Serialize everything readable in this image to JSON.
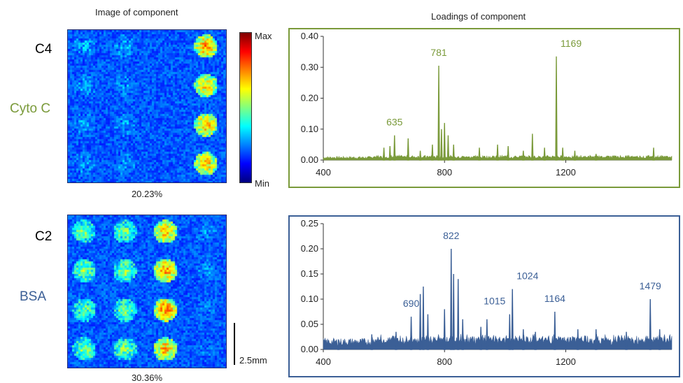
{
  "headers": {
    "image": "Image of component",
    "loadings": "Loadings of component"
  },
  "colorbar": {
    "max": "Max",
    "min": "Min"
  },
  "scale_bar": {
    "label": "2.5mm"
  },
  "panels": [
    {
      "component": "C4",
      "protein": "Cyto C",
      "percent": "20.23%",
      "color": "#7a9a3a",
      "spots": [
        {
          "row": 0,
          "col": 0,
          "i": 0.3
        },
        {
          "row": 0,
          "col": 1,
          "i": 0.28
        },
        {
          "row": 0,
          "col": 3,
          "i": 0.75
        },
        {
          "row": 1,
          "col": 0,
          "i": 0.28
        },
        {
          "row": 1,
          "col": 1,
          "i": 0.26
        },
        {
          "row": 1,
          "col": 3,
          "i": 0.7
        },
        {
          "row": 2,
          "col": 0,
          "i": 0.27
        },
        {
          "row": 2,
          "col": 1,
          "i": 0.27
        },
        {
          "row": 2,
          "col": 3,
          "i": 0.72
        },
        {
          "row": 3,
          "col": 0,
          "i": 0.28
        },
        {
          "row": 3,
          "col": 1,
          "i": 0.27
        },
        {
          "row": 3,
          "col": 3,
          "i": 0.7
        }
      ]
    },
    {
      "component": "C2",
      "protein": "BSA",
      "percent": "30.36%",
      "color": "#3b5f96",
      "spots": [
        {
          "row": 0,
          "col": 0,
          "i": 0.5
        },
        {
          "row": 0,
          "col": 1,
          "i": 0.5
        },
        {
          "row": 0,
          "col": 2,
          "i": 0.7
        },
        {
          "row": 0,
          "col": 3,
          "i": 0.25
        },
        {
          "row": 1,
          "col": 0,
          "i": 0.52
        },
        {
          "row": 1,
          "col": 1,
          "i": 0.52
        },
        {
          "row": 1,
          "col": 2,
          "i": 0.75
        },
        {
          "row": 1,
          "col": 3,
          "i": 0.25
        },
        {
          "row": 2,
          "col": 0,
          "i": 0.5
        },
        {
          "row": 2,
          "col": 1,
          "i": 0.5
        },
        {
          "row": 2,
          "col": 2,
          "i": 0.78
        },
        {
          "row": 2,
          "col": 3,
          "i": 0.22
        },
        {
          "row": 3,
          "col": 0,
          "i": 0.52
        },
        {
          "row": 3,
          "col": 1,
          "i": 0.52
        },
        {
          "row": 3,
          "col": 2,
          "i": 0.72
        },
        {
          "row": 3,
          "col": 3,
          "i": 0.22
        }
      ]
    }
  ],
  "chart_data": [
    {
      "type": "area",
      "title": "",
      "xlabel": "",
      "ylabel": "",
      "xlim": [
        400,
        1550
      ],
      "ylim": [
        0,
        0.4
      ],
      "xticks": [
        400,
        800,
        1200
      ],
      "yticks": [
        0.0,
        0.1,
        0.2,
        0.3,
        0.4
      ],
      "ytick_labels": [
        "0.00",
        "0.10",
        "0.20",
        "0.30",
        "0.40"
      ],
      "baseline": 0.008,
      "peaks": [
        {
          "x": 600,
          "y": 0.04
        },
        {
          "x": 620,
          "y": 0.045
        },
        {
          "x": 635,
          "y": 0.08
        },
        {
          "x": 680,
          "y": 0.07
        },
        {
          "x": 720,
          "y": 0.03
        },
        {
          "x": 760,
          "y": 0.05
        },
        {
          "x": 781,
          "y": 0.305
        },
        {
          "x": 790,
          "y": 0.1
        },
        {
          "x": 800,
          "y": 0.12
        },
        {
          "x": 812,
          "y": 0.08
        },
        {
          "x": 830,
          "y": 0.05
        },
        {
          "x": 915,
          "y": 0.04
        },
        {
          "x": 975,
          "y": 0.05
        },
        {
          "x": 1010,
          "y": 0.045
        },
        {
          "x": 1060,
          "y": 0.03
        },
        {
          "x": 1090,
          "y": 0.085
        },
        {
          "x": 1130,
          "y": 0.04
        },
        {
          "x": 1169,
          "y": 0.335
        },
        {
          "x": 1190,
          "y": 0.04
        },
        {
          "x": 1230,
          "y": 0.03
        },
        {
          "x": 1300,
          "y": 0.02
        },
        {
          "x": 1490,
          "y": 0.04
        }
      ],
      "annotations": [
        {
          "x": 635,
          "y": 0.08,
          "label": "635"
        },
        {
          "x": 781,
          "y": 0.305,
          "label": "781"
        },
        {
          "x": 1169,
          "y": 0.335,
          "label": "1169"
        }
      ]
    },
    {
      "type": "area",
      "title": "",
      "xlabel": "",
      "ylabel": "",
      "xlim": [
        400,
        1550
      ],
      "ylim": [
        0,
        0.25
      ],
      "xticks": [
        400,
        800,
        1200
      ],
      "yticks": [
        0.0,
        0.05,
        0.1,
        0.15,
        0.2,
        0.25
      ],
      "ytick_labels": [
        "0.00",
        "0.05",
        "0.10",
        "0.15",
        "0.20",
        "0.25"
      ],
      "baseline": 0.015,
      "peaks": [
        {
          "x": 450,
          "y": 0.02
        },
        {
          "x": 560,
          "y": 0.03
        },
        {
          "x": 640,
          "y": 0.035
        },
        {
          "x": 690,
          "y": 0.065
        },
        {
          "x": 720,
          "y": 0.11
        },
        {
          "x": 730,
          "y": 0.125
        },
        {
          "x": 745,
          "y": 0.07
        },
        {
          "x": 800,
          "y": 0.08
        },
        {
          "x": 822,
          "y": 0.2
        },
        {
          "x": 830,
          "y": 0.15
        },
        {
          "x": 845,
          "y": 0.14
        },
        {
          "x": 860,
          "y": 0.06
        },
        {
          "x": 920,
          "y": 0.045
        },
        {
          "x": 940,
          "y": 0.06
        },
        {
          "x": 1015,
          "y": 0.07
        },
        {
          "x": 1024,
          "y": 0.12
        },
        {
          "x": 1060,
          "y": 0.04
        },
        {
          "x": 1100,
          "y": 0.035
        },
        {
          "x": 1164,
          "y": 0.075
        },
        {
          "x": 1240,
          "y": 0.04
        },
        {
          "x": 1300,
          "y": 0.04
        },
        {
          "x": 1400,
          "y": 0.035
        },
        {
          "x": 1479,
          "y": 0.1
        },
        {
          "x": 1510,
          "y": 0.04
        }
      ],
      "annotations": [
        {
          "x": 690,
          "y": 0.065,
          "label": "690"
        },
        {
          "x": 822,
          "y": 0.2,
          "label": "822"
        },
        {
          "x": 1015,
          "y": 0.07,
          "label": "1015"
        },
        {
          "x": 1024,
          "y": 0.12,
          "label": "1024"
        },
        {
          "x": 1164,
          "y": 0.075,
          "label": "1164"
        },
        {
          "x": 1479,
          "y": 0.1,
          "label": "1479"
        }
      ]
    }
  ]
}
